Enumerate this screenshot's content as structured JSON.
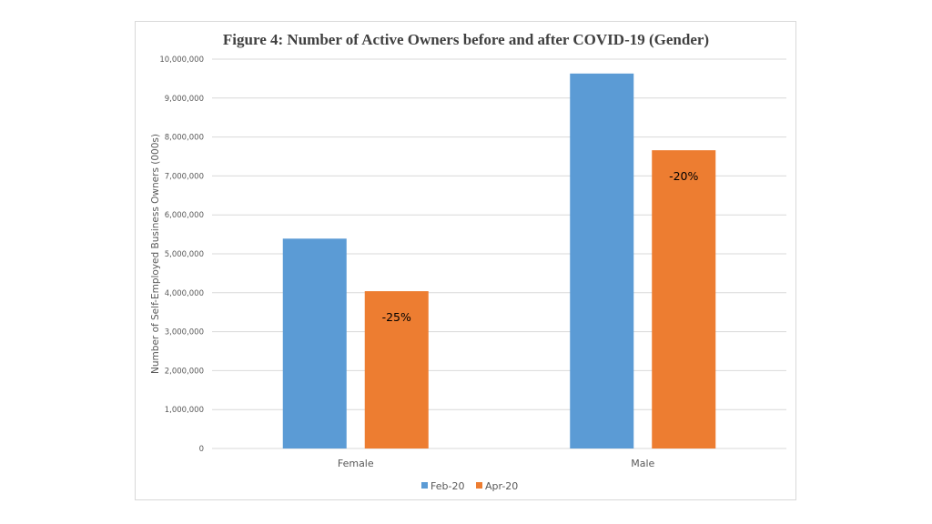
{
  "chart_data": {
    "type": "bar",
    "title": "Figure 4: Number of Active Owners before and after COVID-19 (Gender)",
    "ylabel": "Number of Self-Employed Business Owners (000s)",
    "xlabel": "",
    "categories": [
      "Female",
      "Male"
    ],
    "series": [
      {
        "name": "Feb-20",
        "values": [
          5390000,
          9630000
        ],
        "color": "#5b9bd5"
      },
      {
        "name": "Apr-20",
        "values": [
          4040000,
          7660000
        ],
        "color": "#ed7d31"
      }
    ],
    "ylim": [
      0,
      10000000
    ],
    "yticks": [
      0,
      1000000,
      2000000,
      3000000,
      4000000,
      5000000,
      6000000,
      7000000,
      8000000,
      9000000,
      10000000
    ],
    "ytick_labels": [
      "0",
      "1,000,000",
      "2,000,000",
      "3,000,000",
      "4,000,000",
      "5,000,000",
      "6,000,000",
      "7,000,000",
      "8,000,000",
      "9,000,000",
      "10,000,000"
    ],
    "annotations": [
      {
        "category": "Female",
        "series": "Apr-20",
        "text": "-25%"
      },
      {
        "category": "Male",
        "series": "Apr-20",
        "text": "-20%"
      }
    ],
    "grid": true,
    "legend_position": "bottom",
    "gridline_color": "#d9d9d9"
  }
}
